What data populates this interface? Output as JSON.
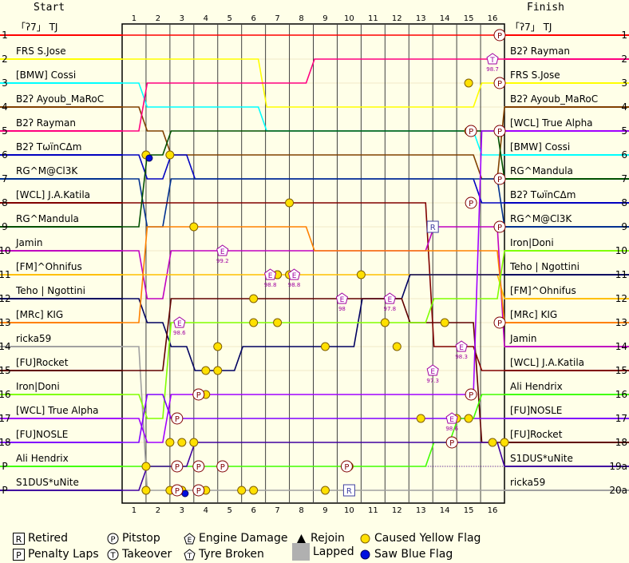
{
  "chart_data": {
    "type": "line",
    "header": {
      "start": "Start",
      "finish": "Finish"
    },
    "laps": [
      "1",
      "2",
      "3",
      "4",
      "5",
      "6",
      "7",
      "8",
      "9",
      "10",
      "11",
      "12",
      "13",
      "14",
      "15",
      "16"
    ],
    "start_positions": [
      "1",
      "2",
      "3",
      "4",
      "5",
      "6",
      "7",
      "8",
      "9",
      "10",
      "11",
      "12",
      "13",
      "14",
      "15",
      "16",
      "17",
      "18",
      "P",
      "P"
    ],
    "finish_positions": [
      "1",
      "2",
      "3",
      "4",
      "5",
      "6",
      "7",
      "8",
      "9",
      "10",
      "11",
      "12",
      "13",
      "14",
      "15",
      "16",
      "17",
      "18",
      "19a",
      "20a"
    ],
    "start_names": [
      "「ʔ7」 TJ",
      "FRS S.Jose",
      "[BMW] Cossi",
      "B2ʔ Ayoub_MaRoC",
      "B2ʔ Rayman",
      "B2ʔ TωïnCΔm",
      "RG^M@Cl3K",
      "[WCL] J.A.Katila",
      "RG^Mandula",
      "Jamin",
      "[FM]^Ohnifus",
      "Teho | Ngottini",
      "[MRc] KIG",
      "ricka59",
      "[FU]Rocket",
      "Iron|Doni",
      "[WCL] True Alpha",
      "[FU]NOSLE",
      "Ali Hendrix",
      "S1DUS*uNite"
    ],
    "finish_names": [
      "「ʔ7」 TJ",
      "B2ʔ Rayman",
      "FRS S.Jose",
      "B2ʔ Ayoub_MaRoC",
      "[WCL] True Alpha",
      "[BMW] Cossi",
      "RG^Mandula",
      "B2ʔ TωïnCΔm",
      "RG^M@Cl3K",
      "Iron|Doni",
      "Teho | Ngottini",
      "[FM]^Ohnifus",
      "[MRc] KIG",
      "Jamin",
      "[WCL] J.A.Katila",
      "Ali Hendrix",
      "[FU]NOSLE",
      "[FU]Rocket",
      "S1DUS*uNite",
      "ricka59"
    ],
    "series": [
      {
        "name": "「ʔ7」 TJ",
        "color": "#ff0000",
        "positions": [
          1,
          1,
          1,
          1,
          1,
          1,
          1,
          1,
          1,
          1,
          1,
          1,
          1,
          1,
          1,
          1,
          1
        ]
      },
      {
        "name": "FRS S.Jose",
        "color": "#ffff00",
        "positions": [
          2,
          2,
          2,
          2,
          2,
          2,
          4,
          4,
          4,
          4,
          4,
          4,
          4,
          4,
          4,
          3,
          3
        ]
      },
      {
        "name": "[BMW] Cossi",
        "color": "#00ffff",
        "positions": [
          3,
          4,
          4,
          4,
          4,
          4,
          5,
          5,
          5,
          5,
          5,
          5,
          5,
          5,
          5,
          6,
          6
        ]
      },
      {
        "name": "B2ʔ Ayoub_MaRoC",
        "color": "#804000",
        "positions": [
          4,
          5,
          6,
          6,
          6,
          6,
          6,
          6,
          6,
          6,
          6,
          6,
          6,
          6,
          6,
          7,
          4
        ]
      },
      {
        "name": "B2ʔ Rayman",
        "color": "#ff0080",
        "positions": [
          5,
          3,
          3,
          3,
          3,
          3,
          3,
          3,
          2,
          2,
          2,
          2,
          2,
          2,
          2,
          2,
          2
        ]
      },
      {
        "name": "B2ʔ TωïnCΔm",
        "color": "#0000c0",
        "positions": [
          6,
          7,
          6,
          7,
          7,
          7,
          7,
          7,
          7,
          7,
          7,
          7,
          7,
          7,
          7,
          8,
          8
        ]
      },
      {
        "name": "RG^M@Cl3K",
        "color": "#003090",
        "positions": [
          7,
          9,
          7,
          7,
          7,
          7,
          7,
          7,
          7,
          7,
          7,
          7,
          7,
          7,
          7,
          7,
          9
        ]
      },
      {
        "name": "[WCL] J.A.Katila",
        "color": "#800000",
        "positions": [
          8,
          8,
          8,
          8,
          8,
          8,
          8,
          8,
          8,
          8,
          8,
          8,
          8,
          14,
          14,
          15,
          15
        ]
      },
      {
        "name": "RG^Mandula",
        "color": "#005000",
        "positions": [
          9,
          6,
          5,
          5,
          5,
          5,
          5,
          5,
          5,
          5,
          5,
          5,
          5,
          5,
          5,
          5,
          7
        ]
      },
      {
        "name": "Jamin",
        "color": "#c000c0",
        "positions": [
          10,
          12,
          10,
          10,
          10,
          10,
          10,
          10,
          10,
          10,
          10,
          10,
          10,
          9,
          9,
          9,
          14
        ]
      },
      {
        "name": "[FM]^Ohnifus",
        "color": "#ffc000",
        "positions": [
          11,
          11,
          11,
          11,
          11,
          11,
          11,
          11,
          11,
          11,
          11,
          11,
          11,
          11,
          11,
          11,
          12
        ]
      },
      {
        "name": "Teho | Ngottini",
        "color": "#000060",
        "positions": [
          12,
          13,
          14,
          15,
          15,
          14,
          14,
          14,
          14,
          14,
          12,
          12,
          11,
          11,
          11,
          11,
          11
        ]
      },
      {
        "name": "[MRc] KIG",
        "color": "#ff8000",
        "positions": [
          13,
          9,
          9,
          9,
          9,
          9,
          9,
          9,
          10,
          10,
          10,
          10,
          10,
          10,
          10,
          10,
          13
        ]
      },
      {
        "name": "ricka59",
        "color": "#a0a0a0",
        "positions": [
          14,
          20,
          20,
          20,
          20,
          20,
          20,
          20,
          20,
          20,
          20,
          20,
          20,
          20,
          20,
          20,
          20
        ]
      },
      {
        "name": "[FU]Rocket",
        "color": "#600000",
        "positions": [
          15,
          15,
          12,
          12,
          12,
          12,
          12,
          12,
          12,
          12,
          12,
          12,
          13,
          13,
          13,
          18,
          18
        ]
      },
      {
        "name": "Iron|Doni",
        "color": "#80ff00",
        "positions": [
          16,
          17,
          13,
          13,
          13,
          13,
          13,
          13,
          13,
          13,
          13,
          13,
          13,
          12,
          12,
          12,
          10
        ]
      },
      {
        "name": "[WCL] True Alpha",
        "color": "#a000ff",
        "positions": [
          17,
          18,
          16,
          16,
          16,
          16,
          16,
          16,
          16,
          16,
          16,
          16,
          16,
          16,
          16,
          5,
          5
        ]
      },
      {
        "name": "[FU]NOSLE",
        "color": "#8000ff",
        "positions": [
          18,
          16,
          17,
          17,
          17,
          17,
          17,
          17,
          17,
          17,
          17,
          17,
          17,
          17,
          17,
          17,
          17
        ]
      },
      {
        "name": "Ali Hendrix",
        "color": "#40ff00",
        "positions": [
          19,
          19,
          19,
          19,
          19,
          19,
          19,
          19,
          19,
          19,
          19,
          19,
          19,
          18,
          17,
          16,
          16
        ]
      },
      {
        "name": "S1DUS*uNite",
        "color": "#4000a0",
        "positions": [
          20,
          19,
          19,
          18,
          18,
          18,
          18,
          18,
          18,
          18,
          18,
          18,
          18,
          18,
          18,
          18,
          19
        ]
      }
    ],
    "markers": [
      {
        "type": "P",
        "lap": 15.8,
        "pos": 1
      },
      {
        "type": "P",
        "lap": 14.6,
        "pos": 5
      },
      {
        "type": "P",
        "lap": 15.8,
        "pos": 3
      },
      {
        "type": "P",
        "lap": 15.8,
        "pos": 5
      },
      {
        "type": "P",
        "lap": 15.8,
        "pos": 7
      },
      {
        "type": "P",
        "lap": 14.6,
        "pos": 8
      },
      {
        "type": "P",
        "lap": 15.8,
        "pos": 9
      },
      {
        "type": "P",
        "lap": 15.8,
        "pos": 13
      },
      {
        "type": "P",
        "lap": 14.6,
        "pos": 16
      },
      {
        "type": "P",
        "lap": 13.8,
        "pos": 18
      },
      {
        "type": "P",
        "lap": 2.3,
        "pos": 17
      },
      {
        "type": "P",
        "lap": 2.3,
        "pos": 19
      },
      {
        "type": "P",
        "lap": 2.3,
        "pos": 20
      },
      {
        "type": "P",
        "lap": 3.2,
        "pos": 16
      },
      {
        "type": "P",
        "lap": 3.2,
        "pos": 19
      },
      {
        "type": "P",
        "lap": 3.2,
        "pos": 20
      },
      {
        "type": "P",
        "lap": 4.2,
        "pos": 19
      },
      {
        "type": "P",
        "lap": 9.4,
        "pos": 19
      },
      {
        "type": "R",
        "lap": 13.0,
        "pos": 9
      },
      {
        "type": "R",
        "lap": 9.5,
        "pos": 20
      },
      {
        "type": "E",
        "lap": 4.2,
        "pos": 10,
        "note": "99.2"
      },
      {
        "type": "E",
        "lap": 6.2,
        "pos": 11,
        "note": "98.8"
      },
      {
        "type": "E",
        "lap": 7.2,
        "pos": 11,
        "note": "98.8"
      },
      {
        "type": "E",
        "lap": 9.2,
        "pos": 12,
        "note": "98"
      },
      {
        "type": "E",
        "lap": 11.2,
        "pos": 12,
        "note": "97.8"
      },
      {
        "type": "E",
        "lap": 13.0,
        "pos": 15,
        "note": "97.3"
      },
      {
        "type": "E",
        "lap": 14.2,
        "pos": 14,
        "note": "98.3"
      },
      {
        "type": "E",
        "lap": 13.8,
        "pos": 17,
        "note": "98.6"
      },
      {
        "type": "E",
        "lap": 2.4,
        "pos": 13,
        "note": "98.6"
      },
      {
        "type": "T",
        "lap": 15.5,
        "pos": 2,
        "note": "98.7"
      }
    ],
    "yellow_flags": [
      [
        1,
        6
      ],
      [
        2,
        6
      ],
      [
        3,
        9
      ],
      [
        3.5,
        16
      ],
      [
        3.5,
        15
      ],
      [
        4,
        14
      ],
      [
        4,
        15
      ],
      [
        3,
        18
      ],
      [
        2.5,
        18
      ],
      [
        2,
        18
      ],
      [
        1,
        19
      ],
      [
        1,
        20
      ],
      [
        2,
        20
      ],
      [
        2.5,
        20
      ],
      [
        3.5,
        20
      ],
      [
        5,
        20
      ],
      [
        5.5,
        20
      ],
      [
        8.5,
        20
      ],
      [
        8.5,
        14
      ],
      [
        9.5,
        19
      ],
      [
        7,
        8
      ],
      [
        7,
        11
      ],
      [
        6.5,
        11
      ],
      [
        5.5,
        12
      ],
      [
        5.5,
        13
      ],
      [
        6.5,
        13
      ],
      [
        10,
        11
      ],
      [
        11,
        13
      ],
      [
        13.5,
        13
      ],
      [
        12.5,
        17
      ],
      [
        14.5,
        3
      ],
      [
        14.5,
        5
      ],
      [
        14.5,
        17
      ],
      [
        14,
        17
      ],
      [
        15.5,
        18
      ],
      [
        16,
        18
      ],
      [
        6.5,
        11.0
      ],
      [
        11.5,
        14
      ]
    ],
    "blue_flags": [
      [
        1,
        6
      ],
      [
        2.5,
        20
      ]
    ],
    "legend": [
      {
        "sym": "R",
        "label": "Retired"
      },
      {
        "sym": "P-circle",
        "label": "Pitstop"
      },
      {
        "sym": "E",
        "label": "Engine Damage"
      },
      {
        "sym": "triangle",
        "label": "Rejoin"
      },
      {
        "sym": "yellow-dot",
        "label": "Caused Yellow Flag"
      },
      {
        "sym": "P-square",
        "label": "Penalty Laps"
      },
      {
        "sym": "T",
        "label": "Takeover"
      },
      {
        "sym": "tyre",
        "label": "Tyre Broken"
      },
      {
        "sym": "grey-box",
        "label": "Lapped"
      },
      {
        "sym": "blue-dot",
        "label": "Saw Blue Flag"
      }
    ]
  }
}
